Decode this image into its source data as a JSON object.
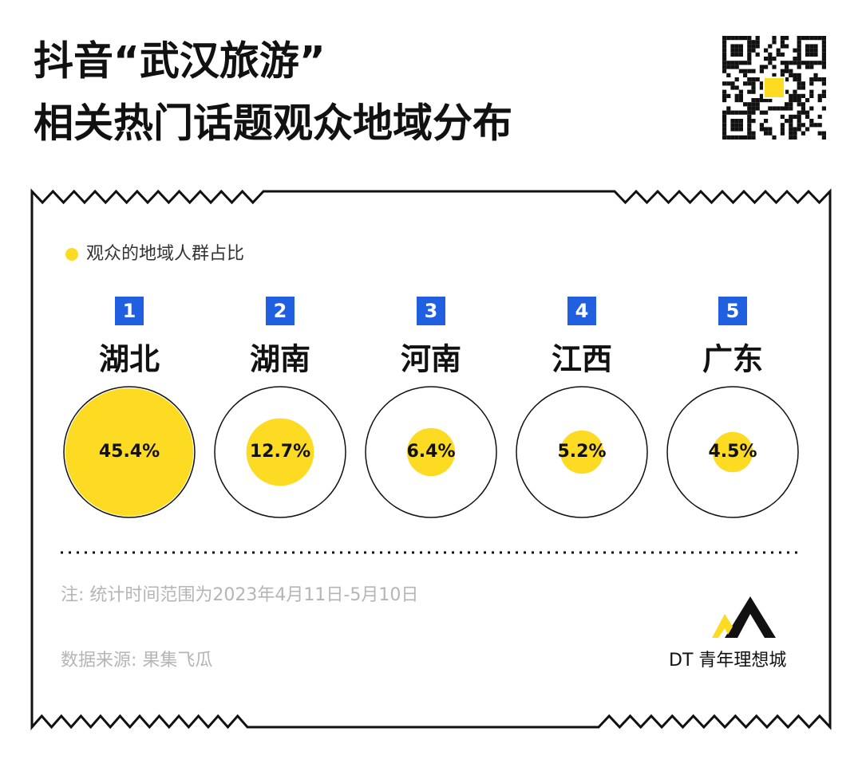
{
  "chart_data": {
    "type": "proportional-circle",
    "title": [
      "抖音“武汉旅游”",
      "相关热门话题观众地域分布"
    ],
    "legend": "观众的地域人群占比",
    "ranks": [
      1,
      2,
      3,
      4,
      5
    ],
    "categories": [
      "湖北",
      "湖南",
      "河南",
      "江西",
      "广东"
    ],
    "values": [
      45.4,
      12.7,
      6.4,
      5.2,
      4.5
    ],
    "value_labels": [
      "45.4%",
      "12.7%",
      "6.4%",
      "5.2%",
      "4.5%"
    ],
    "color": "#fddb22",
    "rank_color": "#1f5fe0",
    "note": "注: 统计时间范围为2023年4月11日-5月10日",
    "source": "数据来源: 果集飞瓜",
    "brand": "DT 青年理想城"
  }
}
